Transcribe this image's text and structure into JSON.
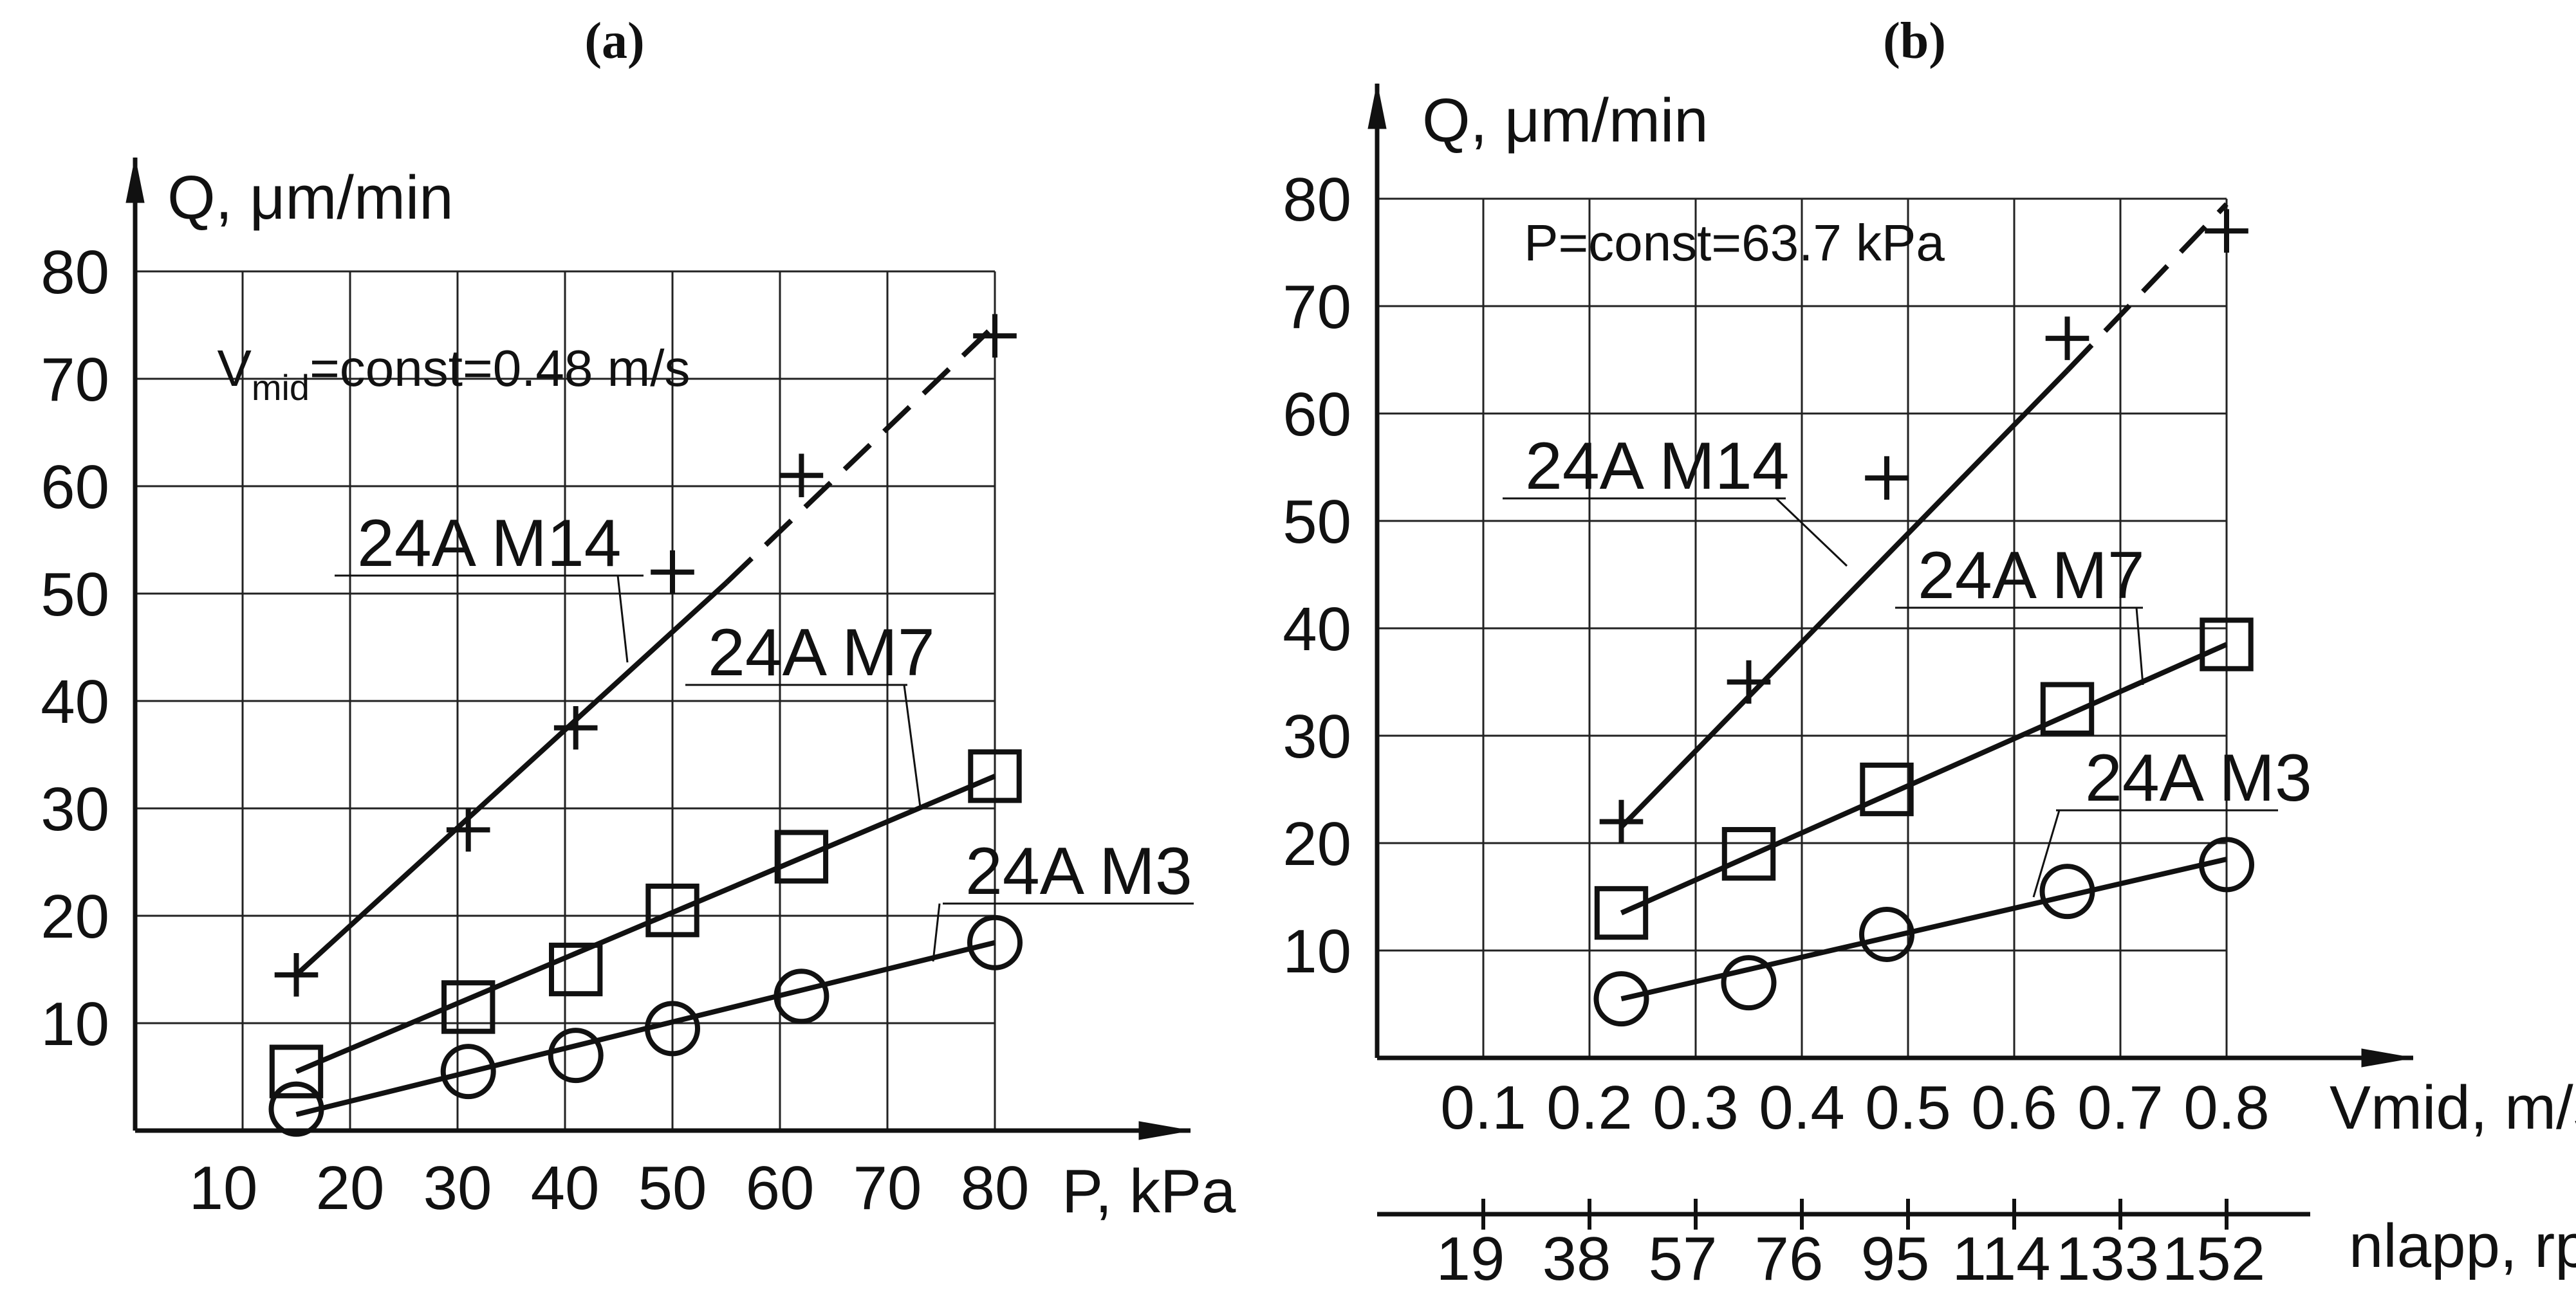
{
  "chart_data": [
    {
      "panel": "(a)",
      "type": "scatter",
      "title": "",
      "xlabel": "P, kPa",
      "ylabel": "Q, μm/min",
      "xlim": [
        0,
        90
      ],
      "ylim": [
        0,
        90
      ],
      "x_ticks": [
        "10",
        "20",
        "30",
        "40",
        "50",
        "60",
        "70",
        "80"
      ],
      "y_ticks": [
        "10",
        "20",
        "30",
        "40",
        "50",
        "60",
        "70",
        "80"
      ],
      "grid": true,
      "annotation": {
        "prefix": "V",
        "subscript": "mid",
        "suffix": "=const=0.48 m/s"
      },
      "series": [
        {
          "name": "24A M14",
          "marker": "plus",
          "points": [
            [
              15,
              14.5
            ],
            [
              31,
              28
            ],
            [
              41,
              37.5
            ],
            [
              50,
              52
            ],
            [
              62,
              61
            ],
            [
              80,
              74
            ]
          ],
          "fit_solid": [
            [
              15,
              14.5
            ],
            [
              55,
              51
            ]
          ],
          "fit_dashed": [
            [
              55,
              51
            ],
            [
              80,
              75
            ]
          ]
        },
        {
          "name": "24A M7",
          "marker": "square",
          "points": [
            [
              15,
              5.5
            ],
            [
              31,
              11.5
            ],
            [
              41,
              15
            ],
            [
              50,
              20.5
            ],
            [
              62,
              25.5
            ],
            [
              80,
              33
            ]
          ],
          "fit_solid": [
            [
              15,
              5.5
            ],
            [
              80,
              33
            ]
          ]
        },
        {
          "name": "24A M3",
          "marker": "circle",
          "points": [
            [
              15,
              2
            ],
            [
              31,
              5.5
            ],
            [
              41,
              7
            ],
            [
              50,
              9.5
            ],
            [
              62,
              12.5
            ],
            [
              80,
              17.5
            ]
          ],
          "fit_solid": [
            [
              15,
              1.5
            ],
            [
              80,
              17.5
            ]
          ]
        }
      ]
    },
    {
      "panel": "(b)",
      "type": "scatter",
      "title": "",
      "xlabel": "Vmid, m/s",
      "ylabel": "Q, μm/min",
      "x2label": "nlapp, rpm",
      "xlim": [
        0,
        0.9
      ],
      "ylim": [
        0,
        90
      ],
      "x_ticks": [
        "0.1",
        "0.2",
        "0.3",
        "0.4",
        "0.5",
        "0.6",
        "0.7",
        "0.8"
      ],
      "x2_ticks": [
        "19",
        "38",
        "57",
        "76",
        "95",
        "114",
        "133",
        "152"
      ],
      "y_ticks": [
        "10",
        "20",
        "30",
        "40",
        "50",
        "60",
        "70",
        "80"
      ],
      "grid": true,
      "annotation": "P=const=63.7 kPa",
      "series": [
        {
          "name": "24A M14",
          "marker": "plus",
          "points": [
            [
              0.23,
              22
            ],
            [
              0.35,
              35
            ],
            [
              0.48,
              54
            ],
            [
              0.65,
              67
            ],
            [
              0.8,
              77
            ]
          ],
          "fit_solid": [
            [
              0.23,
              21.5
            ],
            [
              0.65,
              64
            ]
          ],
          "fit_dashed": [
            [
              0.65,
              64
            ],
            [
              0.8,
              79.5
            ]
          ]
        },
        {
          "name": "24A M7",
          "marker": "square",
          "points": [
            [
              0.23,
              13.5
            ],
            [
              0.35,
              19
            ],
            [
              0.48,
              25
            ],
            [
              0.65,
              32.5
            ],
            [
              0.8,
              38.5
            ]
          ],
          "fit_solid": [
            [
              0.23,
              13.5
            ],
            [
              0.8,
              38.5
            ]
          ]
        },
        {
          "name": "24A M3",
          "marker": "circle",
          "points": [
            [
              0.23,
              5.5
            ],
            [
              0.35,
              7
            ],
            [
              0.48,
              11.5
            ],
            [
              0.65,
              15.5
            ],
            [
              0.8,
              18
            ]
          ],
          "fit_solid": [
            [
              0.23,
              5.5
            ],
            [
              0.8,
              18.5
            ]
          ]
        }
      ]
    }
  ]
}
